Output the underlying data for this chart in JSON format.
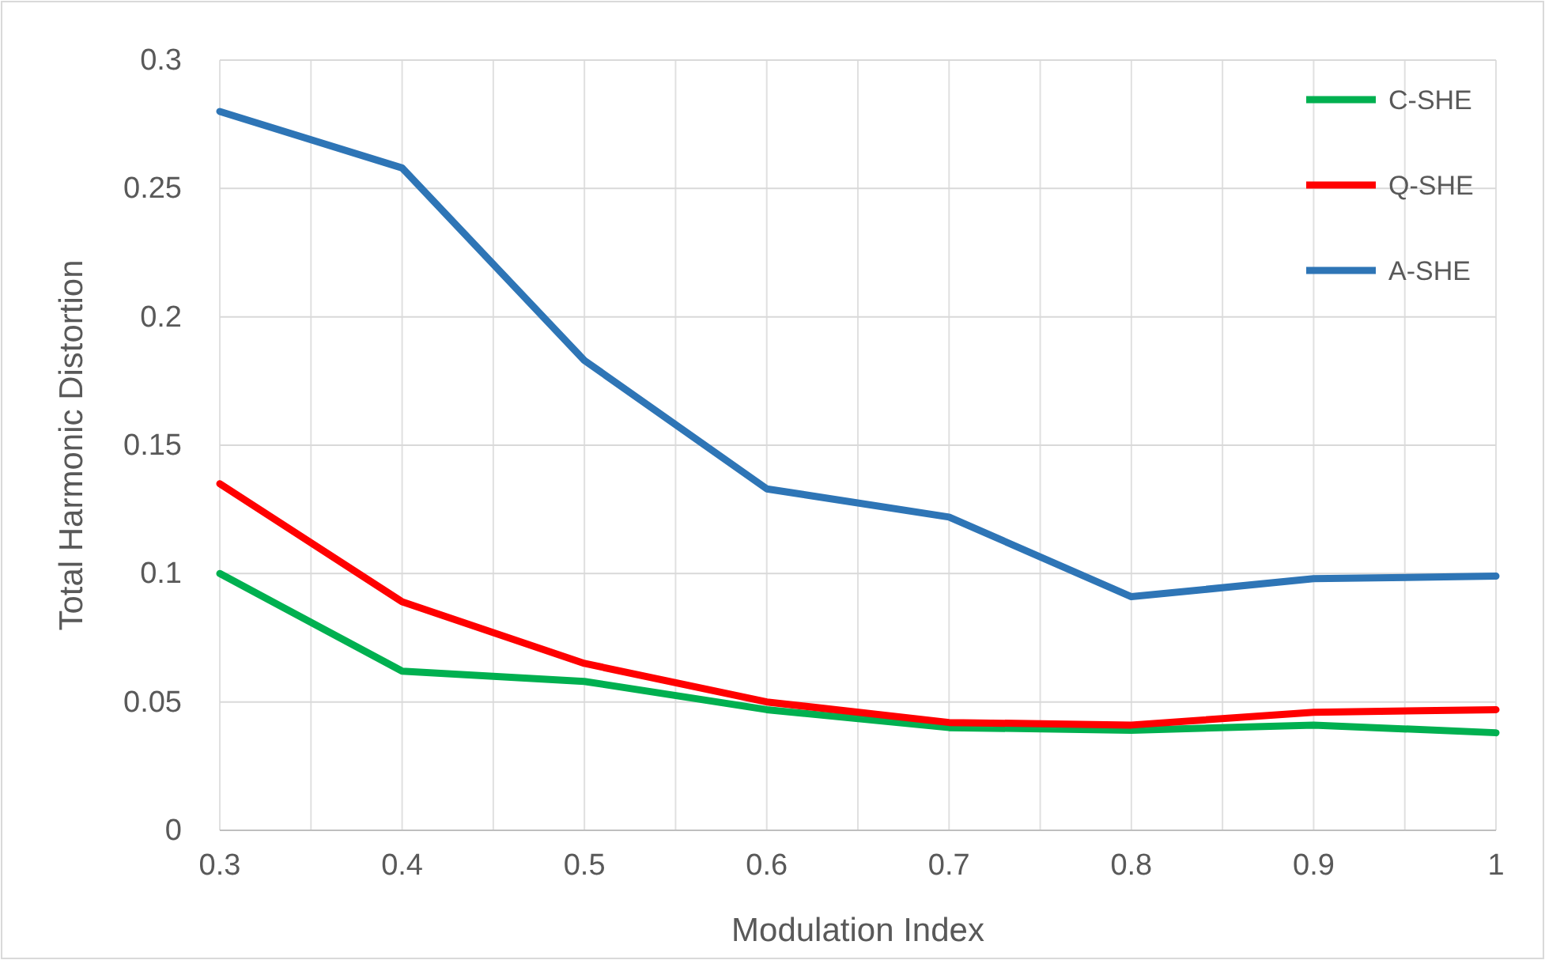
{
  "chart_data": {
    "type": "line",
    "xlabel": "Modulation Index",
    "ylabel": "Total Harmonic Distortion",
    "x": [
      0.3,
      0.4,
      0.5,
      0.6,
      0.7,
      0.8,
      0.9,
      1
    ],
    "series": [
      {
        "name": "C-SHE",
        "color": "#00b050",
        "values": [
          0.1,
          0.062,
          0.058,
          0.047,
          0.04,
          0.039,
          0.041,
          0.038
        ]
      },
      {
        "name": "Q-SHE",
        "color": "#ff0000",
        "values": [
          0.135,
          0.089,
          0.065,
          0.05,
          0.042,
          0.041,
          0.046,
          0.047
        ]
      },
      {
        "name": "A-SHE",
        "color": "#2e75b6",
        "values": [
          0.28,
          0.258,
          0.183,
          0.133,
          0.122,
          0.091,
          0.098,
          0.099
        ]
      }
    ],
    "xlim": [
      0.3,
      1
    ],
    "ylim": [
      0,
      0.3
    ],
    "xticks": [
      {
        "value": 0.3,
        "label": "0.3"
      },
      {
        "value": 0.35,
        "label": null
      },
      {
        "value": 0.4,
        "label": "0.4"
      },
      {
        "value": 0.45,
        "label": null
      },
      {
        "value": 0.5,
        "label": "0.5"
      },
      {
        "value": 0.55,
        "label": null
      },
      {
        "value": 0.6,
        "label": "0.6"
      },
      {
        "value": 0.65,
        "label": null
      },
      {
        "value": 0.7,
        "label": "0.7"
      },
      {
        "value": 0.75,
        "label": null
      },
      {
        "value": 0.8,
        "label": "0.8"
      },
      {
        "value": 0.85,
        "label": null
      },
      {
        "value": 0.9,
        "label": "0.9"
      },
      {
        "value": 0.95,
        "label": null
      },
      {
        "value": 1,
        "label": "1"
      }
    ],
    "yticks": [
      0,
      0.05,
      0.1,
      0.15,
      0.2,
      0.25,
      0.3
    ],
    "grid": true,
    "legend": "top right",
    "marker": "none",
    "line_style": "solid"
  }
}
